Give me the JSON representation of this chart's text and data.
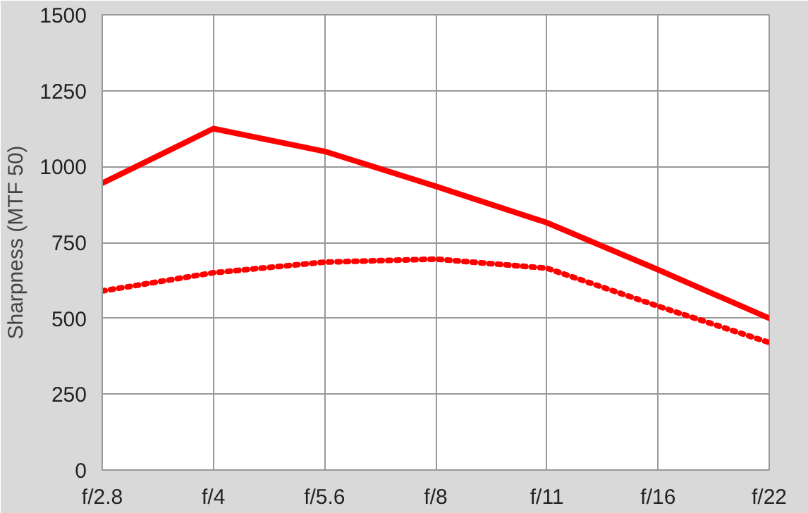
{
  "chart_data": {
    "type": "line",
    "ylabel": "Sharpness (MTF 50)",
    "categories": [
      "f/2.8",
      "f/4",
      "f/5.6",
      "f/8",
      "f/11",
      "f/16",
      "f/22"
    ],
    "series": [
      {
        "color": "#ff0000",
        "line_style": "solid",
        "values": [
          945,
          1125,
          1050,
          935,
          815,
          660,
          500
        ]
      },
      {
        "color": "#ff0000",
        "line_style": "dotted",
        "values": [
          590,
          650,
          685,
          695,
          665,
          540,
          420
        ]
      }
    ],
    "ylim": [
      0,
      1500
    ],
    "yticks": [
      0,
      250,
      500,
      750,
      1000,
      1250,
      1500
    ],
    "grid": true,
    "marker": "none"
  }
}
